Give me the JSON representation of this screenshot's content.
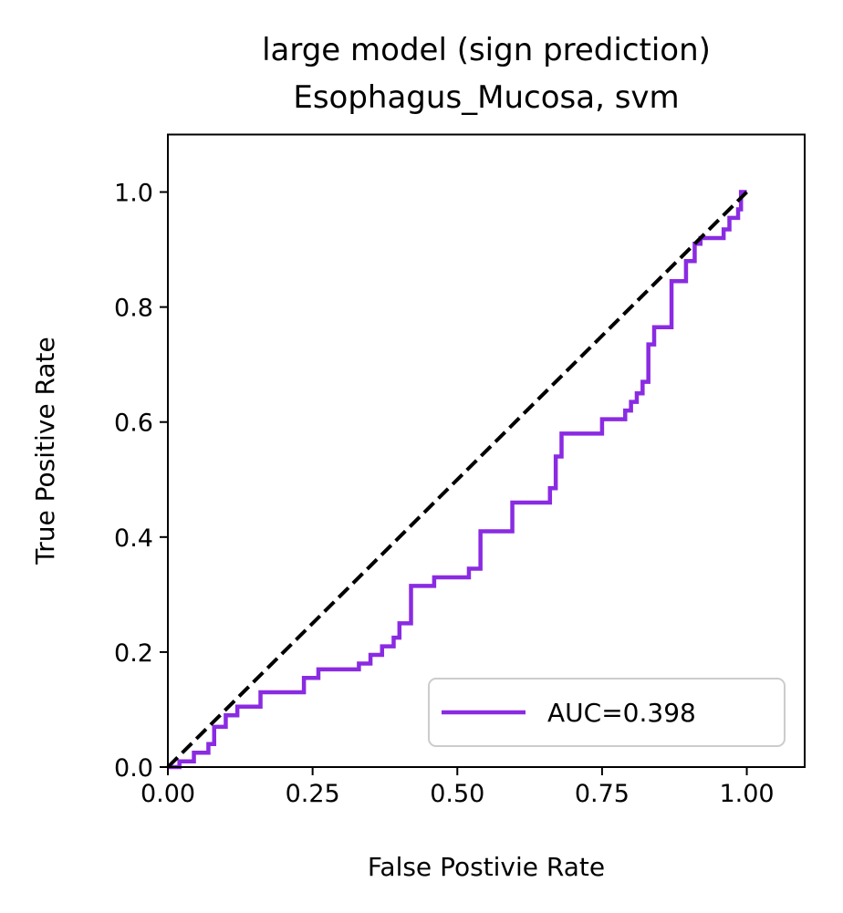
{
  "chart_data": {
    "type": "line",
    "title": "large model (sign prediction)",
    "subtitle": "Esophagus_Mucosa, svm",
    "xlabel": "False Postivie Rate",
    "ylabel": "True Positive Rate",
    "xlim": [
      0.0,
      1.1
    ],
    "ylim": [
      0.0,
      1.1
    ],
    "xticks": [
      "0.00",
      "0.25",
      "0.50",
      "0.75",
      "1.00"
    ],
    "yticks": [
      "0.0",
      "0.2",
      "0.4",
      "0.6",
      "0.8",
      "1.0"
    ],
    "grid": false,
    "legend_position": "lower-right",
    "series": [
      {
        "name": "AUC=0.398",
        "color": "#8a2be2",
        "x": [
          0,
          0.0,
          0.02,
          0.02,
          0.045,
          0.045,
          0.07,
          0.07,
          0.08,
          0.08,
          0.1,
          0.1,
          0.12,
          0.12,
          0.16,
          0.16,
          0.235,
          0.235,
          0.26,
          0.26,
          0.33,
          0.33,
          0.35,
          0.35,
          0.37,
          0.37,
          0.39,
          0.39,
          0.4,
          0.4,
          0.42,
          0.42,
          0.46,
          0.46,
          0.52,
          0.52,
          0.54,
          0.54,
          0.595,
          0.595,
          0.66,
          0.66,
          0.67,
          0.67,
          0.68,
          0.68,
          0.75,
          0.75,
          0.79,
          0.79,
          0.8,
          0.8,
          0.81,
          0.81,
          0.82,
          0.82,
          0.83,
          0.83,
          0.84,
          0.84,
          0.87,
          0.87,
          0.895,
          0.895,
          0.91,
          0.91,
          0.92,
          0.92,
          0.96,
          0.96,
          0.97,
          0.97,
          0.985,
          0.985,
          0.99,
          0.99,
          1.0
        ],
        "y": [
          0,
          0.0,
          0.0,
          0.01,
          0.01,
          0.025,
          0.025,
          0.04,
          0.04,
          0.07,
          0.07,
          0.09,
          0.09,
          0.105,
          0.105,
          0.13,
          0.13,
          0.155,
          0.155,
          0.17,
          0.17,
          0.18,
          0.18,
          0.195,
          0.195,
          0.21,
          0.21,
          0.225,
          0.225,
          0.25,
          0.25,
          0.315,
          0.315,
          0.33,
          0.33,
          0.345,
          0.345,
          0.41,
          0.41,
          0.46,
          0.46,
          0.485,
          0.485,
          0.54,
          0.54,
          0.58,
          0.58,
          0.605,
          0.605,
          0.62,
          0.62,
          0.635,
          0.635,
          0.65,
          0.65,
          0.67,
          0.67,
          0.735,
          0.735,
          0.765,
          0.765,
          0.845,
          0.845,
          0.88,
          0.88,
          0.91,
          0.91,
          0.92,
          0.92,
          0.935,
          0.935,
          0.955,
          0.955,
          0.97,
          0.97,
          1.0,
          1.0
        ]
      },
      {
        "name": "",
        "color": "#000000",
        "style": "dashed",
        "x": [
          0,
          1
        ],
        "y": [
          0,
          1
        ]
      }
    ],
    "legend": [
      "AUC=0.398"
    ]
  }
}
